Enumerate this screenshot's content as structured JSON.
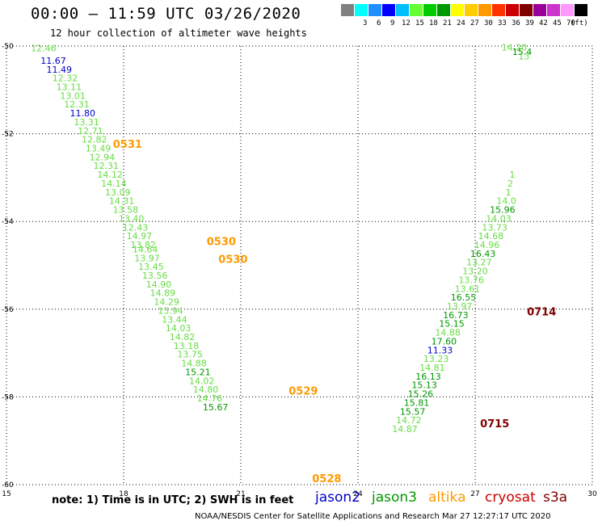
{
  "header": {
    "title": "00:00 – 11:59 UTC 03/26/2020",
    "subtitle": "12 hour collection of altimeter wave heights"
  },
  "colorbar": {
    "unit_label": "(ft)",
    "items": [
      {
        "label": "",
        "color": "#808080"
      },
      {
        "label": "3",
        "color": "#00ffff"
      },
      {
        "label": "6",
        "color": "#1e90ff"
      },
      {
        "label": "9",
        "color": "#0000ff"
      },
      {
        "label": "12",
        "color": "#00bfff"
      },
      {
        "label": "15",
        "color": "#66ff33"
      },
      {
        "label": "18",
        "color": "#00cc00"
      },
      {
        "label": "21",
        "color": "#009900"
      },
      {
        "label": "24",
        "color": "#ffff00"
      },
      {
        "label": "27",
        "color": "#ffcc00"
      },
      {
        "label": "30",
        "color": "#ff9900"
      },
      {
        "label": "33",
        "color": "#ff3300"
      },
      {
        "label": "36",
        "color": "#cc0000"
      },
      {
        "label": "39",
        "color": "#800000"
      },
      {
        "label": "42",
        "color": "#990099"
      },
      {
        "label": "45",
        "color": "#cc33cc"
      },
      {
        "label": "70",
        "color": "#ff99ff"
      },
      {
        "label": "",
        "color": "#000000"
      }
    ]
  },
  "note": "note: 1) Time is in UTC; 2) SWH is in feet",
  "satellites": [
    {
      "name": "jason2",
      "color": "#0000cc"
    },
    {
      "name": "jason3",
      "color": "#009900"
    },
    {
      "name": "altika",
      "color": "#ff9900"
    },
    {
      "name": "cryosat",
      "color": "#cc0000"
    },
    {
      "name": "s3a",
      "color": "#800000"
    }
  ],
  "footer": "NOAA/NESDIS Center for Satellite Applications and Research   Mar 27 12:27:17 UTC 2020",
  "chart_data": {
    "type": "scatter",
    "xlim": [
      15,
      30
    ],
    "ylim": [
      -60,
      -50
    ],
    "x_ticks": [
      15,
      18,
      21,
      24,
      27,
      30
    ],
    "y_ticks": [
      -50,
      -52,
      -54,
      -56,
      -58,
      -60
    ],
    "grid": true,
    "points": [
      {
        "lon": 15.95,
        "lat": -50.05,
        "value": "12.46",
        "color": "#66dd44"
      },
      {
        "lon": 16.2,
        "lat": -50.33,
        "value": "11.67",
        "color": "#0000cc"
      },
      {
        "lon": 16.35,
        "lat": -50.53,
        "value": "11.49",
        "color": "#0000cc"
      },
      {
        "lon": 16.5,
        "lat": -50.73,
        "value": "12.32",
        "color": "#66dd44"
      },
      {
        "lon": 16.6,
        "lat": -50.93,
        "value": "13.11",
        "color": "#66dd44"
      },
      {
        "lon": 16.7,
        "lat": -51.13,
        "value": "13.01",
        "color": "#66dd44"
      },
      {
        "lon": 16.8,
        "lat": -51.33,
        "value": "12.31",
        "color": "#66dd44"
      },
      {
        "lon": 16.95,
        "lat": -51.53,
        "value": "11.80",
        "color": "#0000cc"
      },
      {
        "lon": 17.05,
        "lat": -51.73,
        "value": "13.31",
        "color": "#66dd44"
      },
      {
        "lon": 17.15,
        "lat": -51.93,
        "value": "12.71",
        "color": "#66dd44"
      },
      {
        "lon": 17.25,
        "lat": -52.13,
        "value": "12.82",
        "color": "#66dd44"
      },
      {
        "lon": 17.35,
        "lat": -52.33,
        "value": "13.49",
        "color": "#66dd44"
      },
      {
        "lon": 17.45,
        "lat": -52.53,
        "value": "12.94",
        "color": "#66dd44"
      },
      {
        "lon": 17.55,
        "lat": -52.73,
        "value": "12.31",
        "color": "#66dd44"
      },
      {
        "lon": 17.65,
        "lat": -52.93,
        "value": "14.12",
        "color": "#66dd44"
      },
      {
        "lon": 17.75,
        "lat": -53.13,
        "value": "14.14",
        "color": "#66dd44"
      },
      {
        "lon": 17.85,
        "lat": -53.33,
        "value": "13.09",
        "color": "#66dd44"
      },
      {
        "lon": 17.95,
        "lat": -53.53,
        "value": "14.31",
        "color": "#66dd44"
      },
      {
        "lon": 18.05,
        "lat": -53.73,
        "value": "13.58",
        "color": "#66dd44"
      },
      {
        "lon": 18.2,
        "lat": -53.93,
        "value": "13.40",
        "color": "#66dd44"
      },
      {
        "lon": 18.3,
        "lat": -54.13,
        "value": "12.43",
        "color": "#66dd44"
      },
      {
        "lon": 18.4,
        "lat": -54.33,
        "value": "14.97",
        "color": "#66dd44"
      },
      {
        "lon": 18.5,
        "lat": -54.53,
        "value": "13.82",
        "color": "#66dd44"
      },
      {
        "lon": 18.55,
        "lat": -54.63,
        "value": "14.64",
        "color": "#66dd44"
      },
      {
        "lon": 18.6,
        "lat": -54.83,
        "value": "13.97",
        "color": "#66dd44"
      },
      {
        "lon": 18.7,
        "lat": -55.03,
        "value": "13.45",
        "color": "#66dd44"
      },
      {
        "lon": 18.8,
        "lat": -55.23,
        "value": "13.56",
        "color": "#66dd44"
      },
      {
        "lon": 18.9,
        "lat": -55.43,
        "value": "14.90",
        "color": "#66dd44"
      },
      {
        "lon": 19.0,
        "lat": -55.63,
        "value": "14.89",
        "color": "#66dd44"
      },
      {
        "lon": 19.1,
        "lat": -55.83,
        "value": "14.29",
        "color": "#66dd44"
      },
      {
        "lon": 19.2,
        "lat": -56.03,
        "value": "13.94",
        "color": "#66dd44"
      },
      {
        "lon": 19.3,
        "lat": -56.23,
        "value": "13.44",
        "color": "#66dd44"
      },
      {
        "lon": 19.4,
        "lat": -56.43,
        "value": "14.03",
        "color": "#66dd44"
      },
      {
        "lon": 19.5,
        "lat": -56.63,
        "value": "14.82",
        "color": "#66dd44"
      },
      {
        "lon": 19.6,
        "lat": -56.83,
        "value": "13.18",
        "color": "#66dd44"
      },
      {
        "lon": 19.7,
        "lat": -57.03,
        "value": "13.75",
        "color": "#66dd44"
      },
      {
        "lon": 19.8,
        "lat": -57.23,
        "value": "14.88",
        "color": "#66dd44"
      },
      {
        "lon": 19.9,
        "lat": -57.43,
        "value": "15.21",
        "color": "#009900"
      },
      {
        "lon": 20.0,
        "lat": -57.63,
        "value": "14.02",
        "color": "#66dd44"
      },
      {
        "lon": 20.1,
        "lat": -57.83,
        "value": "14.80",
        "color": "#66dd44"
      },
      {
        "lon": 20.2,
        "lat": -58.03,
        "value": "14.76",
        "color": "#66dd44"
      },
      {
        "lon": 20.35,
        "lat": -58.23,
        "value": "15.67",
        "color": "#009900"
      },
      {
        "lon": 28.0,
        "lat": -50.03,
        "value": "14.20",
        "color": "#66dd44"
      },
      {
        "lon": 28.2,
        "lat": -50.13,
        "value": "15.4",
        "color": "#009900"
      },
      {
        "lon": 28.25,
        "lat": -50.23,
        "value": "13",
        "color": "#66dd44"
      },
      {
        "lon": 27.95,
        "lat": -52.93,
        "value": "1",
        "color": "#66dd44"
      },
      {
        "lon": 27.9,
        "lat": -53.13,
        "value": "2",
        "color": "#66dd44"
      },
      {
        "lon": 27.85,
        "lat": -53.33,
        "value": "1",
        "color": "#66dd44"
      },
      {
        "lon": 27.8,
        "lat": -53.53,
        "value": "14.0",
        "color": "#66dd44"
      },
      {
        "lon": 27.7,
        "lat": -53.73,
        "value": "15.96",
        "color": "#009900"
      },
      {
        "lon": 27.6,
        "lat": -53.93,
        "value": "14.03",
        "color": "#66dd44"
      },
      {
        "lon": 27.5,
        "lat": -54.13,
        "value": "13.73",
        "color": "#66dd44"
      },
      {
        "lon": 27.4,
        "lat": -54.33,
        "value": "14.68",
        "color": "#66dd44"
      },
      {
        "lon": 27.3,
        "lat": -54.53,
        "value": "14.96",
        "color": "#66dd44"
      },
      {
        "lon": 27.2,
        "lat": -54.73,
        "value": "16.43",
        "color": "#009900"
      },
      {
        "lon": 27.1,
        "lat": -54.93,
        "value": "13.27",
        "color": "#66dd44"
      },
      {
        "lon": 27.0,
        "lat": -55.13,
        "value": "13.20",
        "color": "#66dd44"
      },
      {
        "lon": 26.9,
        "lat": -55.33,
        "value": "13.76",
        "color": "#66dd44"
      },
      {
        "lon": 26.8,
        "lat": -55.53,
        "value": "13.61",
        "color": "#66dd44"
      },
      {
        "lon": 26.7,
        "lat": -55.73,
        "value": "16.55",
        "color": "#009900"
      },
      {
        "lon": 26.6,
        "lat": -55.93,
        "value": "13.97",
        "color": "#66dd44"
      },
      {
        "lon": 26.5,
        "lat": -56.13,
        "value": "16.73",
        "color": "#009900"
      },
      {
        "lon": 26.4,
        "lat": -56.33,
        "value": "15.15",
        "color": "#009900"
      },
      {
        "lon": 26.3,
        "lat": -56.53,
        "value": "14.88",
        "color": "#66dd44"
      },
      {
        "lon": 26.2,
        "lat": -56.73,
        "value": "17.60",
        "color": "#009900"
      },
      {
        "lon": 26.1,
        "lat": -56.93,
        "value": "11.33",
        "color": "#0000cc"
      },
      {
        "lon": 26.0,
        "lat": -57.13,
        "value": "13.23",
        "color": "#66dd44"
      },
      {
        "lon": 25.9,
        "lat": -57.33,
        "value": "14.81",
        "color": "#66dd44"
      },
      {
        "lon": 25.8,
        "lat": -57.53,
        "value": "16.13",
        "color": "#009900"
      },
      {
        "lon": 25.7,
        "lat": -57.73,
        "value": "15.13",
        "color": "#009900"
      },
      {
        "lon": 25.6,
        "lat": -57.93,
        "value": "15.26",
        "color": "#009900"
      },
      {
        "lon": 25.5,
        "lat": -58.13,
        "value": "15.81",
        "color": "#009900"
      },
      {
        "lon": 25.4,
        "lat": -58.33,
        "value": "15.57",
        "color": "#009900"
      },
      {
        "lon": 25.3,
        "lat": -58.53,
        "value": "14.72",
        "color": "#66dd44"
      },
      {
        "lon": 25.2,
        "lat": -58.73,
        "value": "14.87",
        "color": "#66dd44"
      }
    ],
    "track_labels": [
      {
        "lon": 18.1,
        "lat": -52.23,
        "text": "0531",
        "color": "#ff9900"
      },
      {
        "lon": 20.5,
        "lat": -54.45,
        "text": "0530",
        "color": "#ff9900"
      },
      {
        "lon": 20.8,
        "lat": -54.85,
        "text": "0530",
        "color": "#ff9900"
      },
      {
        "lon": 22.6,
        "lat": -57.85,
        "text": "0529",
        "color": "#ff9900"
      },
      {
        "lon": 23.2,
        "lat": -59.85,
        "text": "0528",
        "color": "#ff9900"
      },
      {
        "lon": 28.7,
        "lat": -56.05,
        "text": "0714",
        "color": "#800000"
      },
      {
        "lon": 27.5,
        "lat": -58.6,
        "text": "0715",
        "color": "#800000"
      }
    ]
  }
}
